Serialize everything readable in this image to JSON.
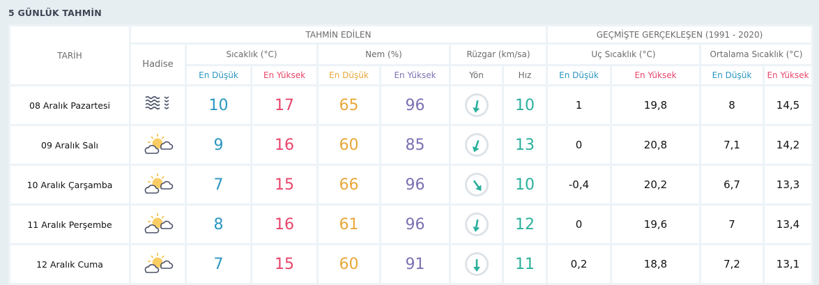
{
  "title": "5 GÜNLÜK TAHMİN",
  "headers": {
    "date": "TARİH",
    "forecast": "TAHMİN EDİLEN",
    "history": "GEÇMİŞTE GERÇEKLEŞEN (1991 - 2020)",
    "event": "Hadise",
    "temp": "Sıcaklık (°C)",
    "humidity": "Nem (%)",
    "wind": "Rüzgar (km/sa)",
    "extreme": "Uç Sıcaklık (°C)",
    "average": "Ortalama Sıcaklık (°C)",
    "low": "En Düşük",
    "high": "En Yüksek",
    "direction": "Yön",
    "speed": "Hız"
  },
  "colors": {
    "low_temp": "#2a96c0",
    "high_temp": "#e8456b",
    "low_humidity": "#e9a73a",
    "high_humidity": "#7c70b3",
    "wind": "#2bb09b"
  },
  "rows": [
    {
      "date": "08 Aralık Pazartesi",
      "icon": "fog-icon",
      "temp_low": "10",
      "temp_high": "17",
      "hum_low": "65",
      "hum_high": "96",
      "wind_dir_deg": 190,
      "wind_speed": "10",
      "ext_low": "1",
      "ext_high": "19,8",
      "avg_low": "8",
      "avg_high": "14,5"
    },
    {
      "date": "09 Aralık Salı",
      "icon": "partly-cloudy-icon",
      "temp_low": "9",
      "temp_high": "16",
      "hum_low": "60",
      "hum_high": "85",
      "wind_dir_deg": 200,
      "wind_speed": "13",
      "ext_low": "0",
      "ext_high": "20,8",
      "avg_low": "7,1",
      "avg_high": "14,2"
    },
    {
      "date": "10 Aralık Çarşamba",
      "icon": "partly-cloudy-icon",
      "temp_low": "7",
      "temp_high": "15",
      "hum_low": "66",
      "hum_high": "96",
      "wind_dir_deg": 145,
      "wind_speed": "10",
      "ext_low": "-0,4",
      "ext_high": "20,2",
      "avg_low": "6,7",
      "avg_high": "13,3"
    },
    {
      "date": "11 Aralık Perşembe",
      "icon": "partly-cloudy-icon",
      "temp_low": "8",
      "temp_high": "16",
      "hum_low": "61",
      "hum_high": "96",
      "wind_dir_deg": 190,
      "wind_speed": "12",
      "ext_low": "0",
      "ext_high": "19,6",
      "avg_low": "7",
      "avg_high": "13,4"
    },
    {
      "date": "12 Aralık Cuma",
      "icon": "partly-cloudy-icon",
      "temp_low": "7",
      "temp_high": "15",
      "hum_low": "60",
      "hum_high": "91",
      "wind_dir_deg": 180,
      "wind_speed": "11",
      "ext_low": "0,2",
      "ext_high": "18,8",
      "avg_low": "7,2",
      "avg_high": "13,1"
    }
  ]
}
